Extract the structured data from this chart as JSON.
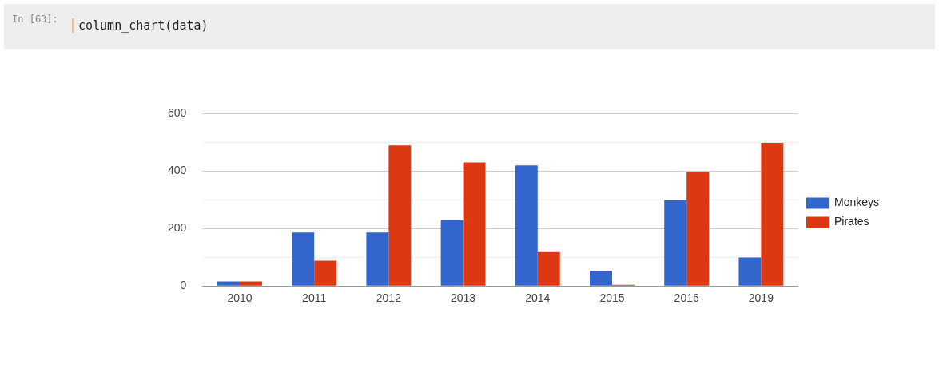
{
  "chart_data": {
    "type": "bar",
    "categories": [
      "2010",
      "2011",
      "2012",
      "2013",
      "2014",
      "2015",
      "2016",
      "2019"
    ],
    "series": [
      {
        "name": "Monkeys",
        "color": "#3366cc",
        "values": [
          16,
          186,
          186,
          229,
          419,
          53,
          298,
          99
        ]
      },
      {
        "name": "Pirates",
        "color": "#dc3912",
        "values": [
          16,
          88,
          488,
          429,
          118,
          4,
          395,
          497
        ]
      }
    ],
    "ylim": [
      0,
      600
    ],
    "yticks": [
      0,
      {
        "value": 100,
        "label": null
      },
      200,
      {
        "value": 300,
        "label": null
      },
      400,
      {
        "value": 500,
        "label": null
      },
      600
    ],
    "grid": "y",
    "legend": "right",
    "annotations": [
      "In [63]:",
      "column_chart(data)"
    ]
  }
}
